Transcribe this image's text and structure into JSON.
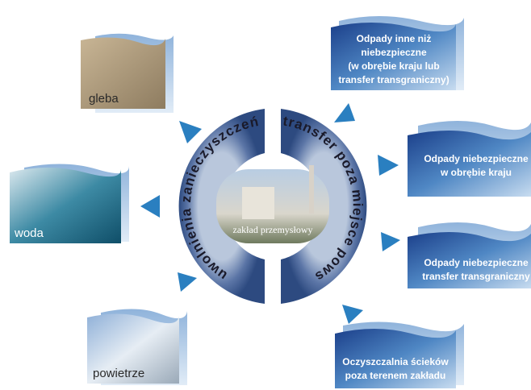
{
  "media": {
    "soil": "gleba",
    "water": "woda",
    "air": "powietrze"
  },
  "center": "zakład przemysłowy",
  "left_arc": "uwolnienia zanieczyszczeń",
  "right_arc": "transfer poza miejsce powstania",
  "boxes": [
    {
      "lines": [
        "Odpady inne niż",
        "niebezpieczne",
        "(w obrębie kraju lub",
        "transfer transgraniczny)"
      ]
    },
    {
      "lines": [
        "Odpady niebezpieczne",
        "w obrębie kraju"
      ]
    },
    {
      "lines": [
        "Odpady niebezpieczne",
        "transfer transgraniczny"
      ]
    },
    {
      "lines": [
        "Oczyszczalnia ścieków",
        "poza terenem zakładu"
      ]
    }
  ]
}
